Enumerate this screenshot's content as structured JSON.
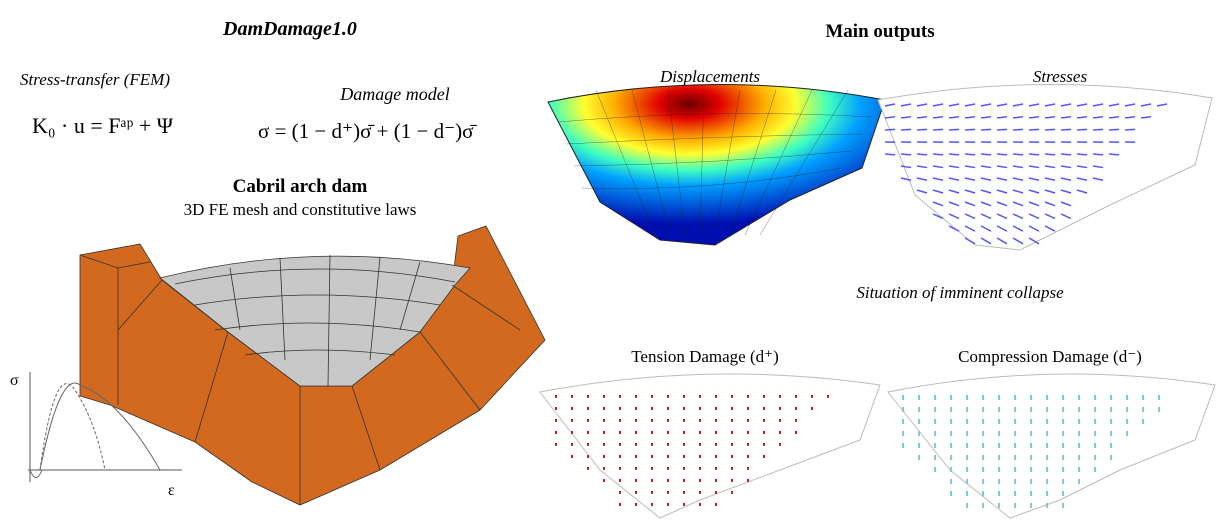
{
  "left": {
    "title": "DamDamage1.0",
    "stress_transfer": {
      "label": "Stress-transfer (FEM)",
      "equation": "K₀ · u = Fᵃᵖ + Ψ"
    },
    "damage_model": {
      "label": "Damage model",
      "equation": "σ = (1 − d⁺)σ̄ + (1 − d⁻)σ̄"
    },
    "dam": {
      "title": "Cabril arch dam",
      "subtitle": "3D FE mesh and constitutive laws"
    },
    "law_graph": {
      "y_label": "σ",
      "x_label": "ε"
    }
  },
  "right": {
    "title": "Main outputs",
    "displacements": "Displacements",
    "stresses": "Stresses",
    "collapse_title": "Situation of imminent collapse",
    "tension": "Tension Damage (d⁺)",
    "compression": "Compression Damage (d⁻)"
  }
}
